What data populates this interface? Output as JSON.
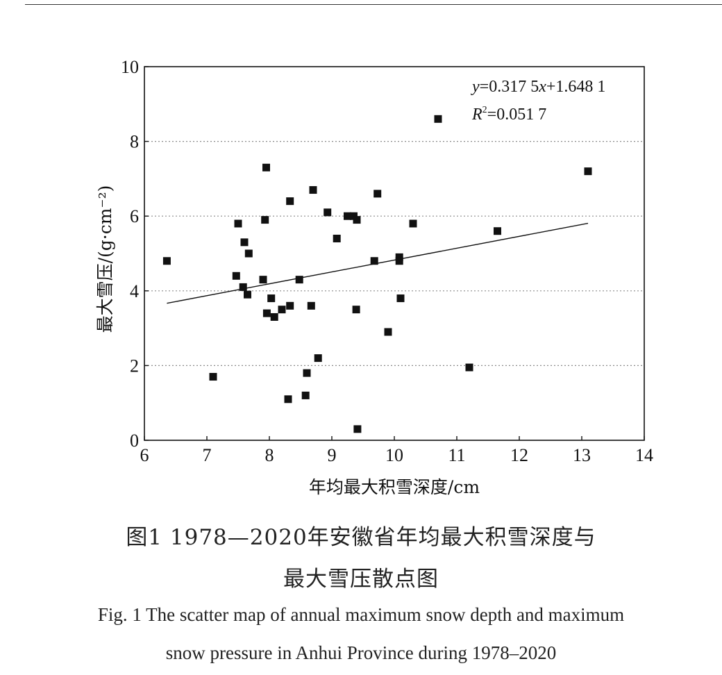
{
  "chart_data": {
    "type": "scatter",
    "title": "",
    "xlabel": "年均最大积雪深度/cm",
    "ylabel": "最大雪压/(g·cm⁻²)",
    "xlim": [
      6,
      14
    ],
    "ylim": [
      0,
      10
    ],
    "x_ticks": [
      "6",
      "7",
      "8",
      "9",
      "10",
      "11",
      "12",
      "13",
      "14"
    ],
    "y_ticks": [
      "0",
      "2",
      "4",
      "6",
      "8",
      "10"
    ],
    "grid": "horizontal-dotted",
    "marker": "square",
    "marker_color": "#111111",
    "points": [
      {
        "x": 6.36,
        "y": 4.8
      },
      {
        "x": 7.1,
        "y": 1.7
      },
      {
        "x": 7.47,
        "y": 4.4
      },
      {
        "x": 7.5,
        "y": 5.8
      },
      {
        "x": 7.58,
        "y": 4.1
      },
      {
        "x": 7.6,
        "y": 5.3
      },
      {
        "x": 7.65,
        "y": 3.9
      },
      {
        "x": 7.67,
        "y": 5.0
      },
      {
        "x": 7.9,
        "y": 4.3
      },
      {
        "x": 7.93,
        "y": 5.9
      },
      {
        "x": 7.95,
        "y": 7.3
      },
      {
        "x": 7.96,
        "y": 3.4
      },
      {
        "x": 8.03,
        "y": 3.8
      },
      {
        "x": 8.08,
        "y": 3.3
      },
      {
        "x": 8.2,
        "y": 3.5
      },
      {
        "x": 8.3,
        "y": 1.1
      },
      {
        "x": 8.33,
        "y": 3.6
      },
      {
        "x": 8.33,
        "y": 6.4
      },
      {
        "x": 8.48,
        "y": 4.3
      },
      {
        "x": 8.58,
        "y": 1.2
      },
      {
        "x": 8.6,
        "y": 1.8
      },
      {
        "x": 8.67,
        "y": 3.6
      },
      {
        "x": 8.7,
        "y": 6.7
      },
      {
        "x": 8.78,
        "y": 2.2
      },
      {
        "x": 8.93,
        "y": 6.1
      },
      {
        "x": 9.08,
        "y": 5.4
      },
      {
        "x": 9.25,
        "y": 6.0
      },
      {
        "x": 9.35,
        "y": 6.0
      },
      {
        "x": 9.39,
        "y": 3.5
      },
      {
        "x": 9.4,
        "y": 5.9
      },
      {
        "x": 9.41,
        "y": 0.3
      },
      {
        "x": 9.68,
        "y": 4.8
      },
      {
        "x": 9.73,
        "y": 6.6
      },
      {
        "x": 9.9,
        "y": 2.9
      },
      {
        "x": 10.08,
        "y": 4.9
      },
      {
        "x": 10.08,
        "y": 4.8
      },
      {
        "x": 10.1,
        "y": 3.8
      },
      {
        "x": 10.3,
        "y": 5.8
      },
      {
        "x": 10.7,
        "y": 8.6
      },
      {
        "x": 11.2,
        "y": 1.95
      },
      {
        "x": 11.65,
        "y": 5.6
      },
      {
        "x": 13.1,
        "y": 7.2
      }
    ],
    "trendline": {
      "slope": 0.3175,
      "intercept": 1.6481,
      "x_range": [
        6.36,
        13.1
      ]
    },
    "annotations": {
      "equation": {
        "y": "y",
        "eq": "=0.317 5",
        "x": "x",
        "rest": "+1.648 1"
      },
      "r2": {
        "R": "R",
        "sup": "2",
        "rest": "=0.051 7"
      }
    }
  },
  "caption": {
    "zh_line1": "图1 1978—2020年安徽省年均最大积雪深度与",
    "zh_line2": "最大雪压散点图",
    "en_line1": "Fig. 1 The scatter map of annual maximum snow depth and maximum",
    "en_line2": "snow pressure in Anhui Province during 1978–2020"
  }
}
